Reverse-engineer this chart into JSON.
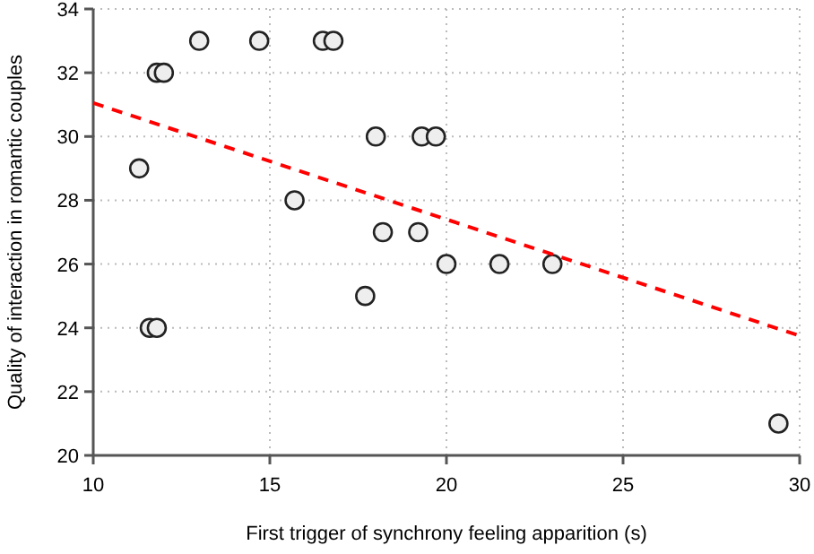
{
  "chart_data": {
    "type": "scatter",
    "xlabel": "First trigger of synchrony feeling apparition (s)",
    "ylabel": "Quality of interaction in romantic couples",
    "xlim": [
      10,
      30
    ],
    "xticks": [
      10,
      15,
      20,
      25,
      30
    ],
    "ylim": [
      20,
      34
    ],
    "yticks": [
      20,
      22,
      24,
      26,
      28,
      30,
      32,
      34
    ],
    "grid": true,
    "series": [
      {
        "color": "#222222",
        "marker": "circle",
        "x": [
          13,
          14.7,
          16.5,
          16.8,
          11.8,
          12,
          18,
          19.3,
          19.7,
          11.3,
          15.7,
          18.2,
          19.2,
          20,
          21.5,
          23,
          17.7,
          11.6,
          11.8,
          29.4
        ],
        "values": [
          33,
          33,
          33,
          33,
          32,
          32,
          30,
          30,
          30,
          29,
          28,
          27,
          27,
          26,
          26,
          26,
          25,
          24,
          24,
          21
        ]
      },
      {
        "type": "line",
        "color": "#ff0000",
        "line_style": "dashed",
        "marker": "none",
        "x": [
          10,
          30
        ],
        "values": [
          31.05,
          23.75
        ]
      }
    ]
  }
}
